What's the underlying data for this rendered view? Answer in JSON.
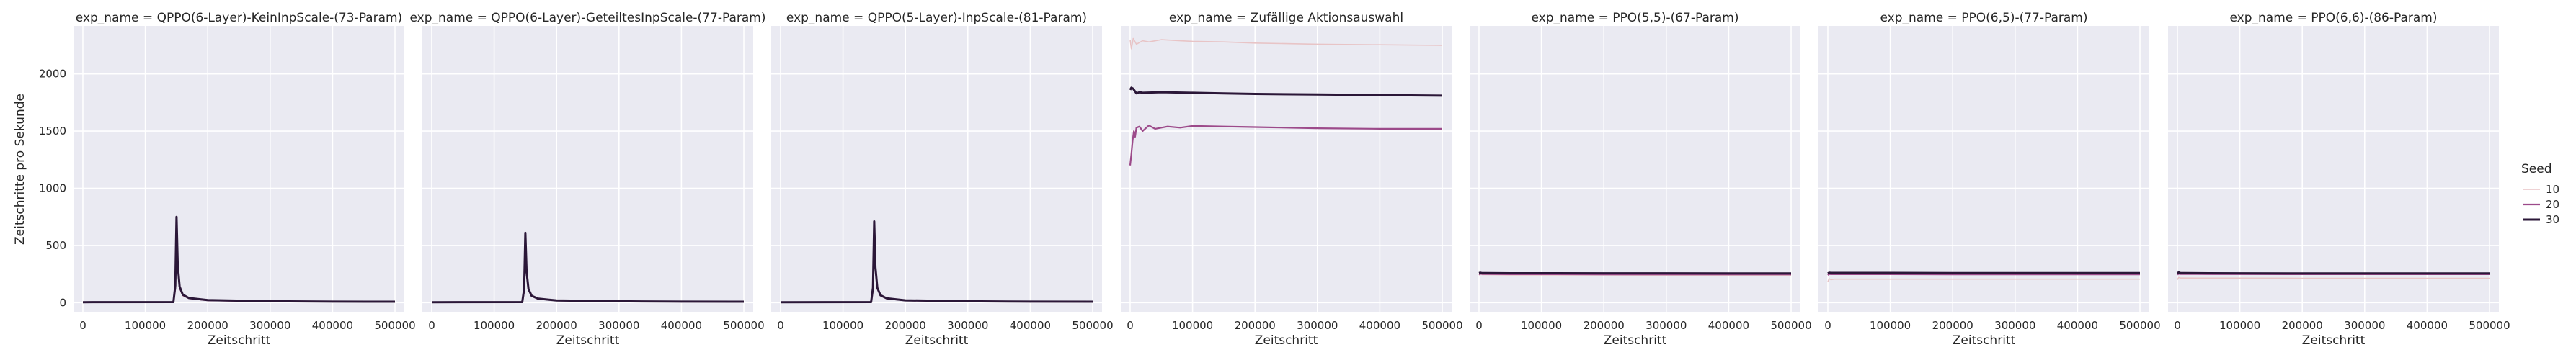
{
  "chart_data": {
    "type": "line",
    "xlabel": "Zeitschritt",
    "ylabel": "Zeitschritte pro Sekunde",
    "xlim": [
      -15000,
      515000
    ],
    "ylim": [
      -80,
      2420
    ],
    "xticks": [
      0,
      100000,
      200000,
      300000,
      400000,
      500000
    ],
    "yticks": [
      0,
      500,
      1000,
      1500,
      2000
    ],
    "grid": true,
    "legend": {
      "title": "Seed",
      "placement": "right",
      "entries": [
        {
          "label": "10",
          "color": "#e8c4c6"
        },
        {
          "label": "20",
          "color": "#9c4a8a"
        },
        {
          "label": "30",
          "color": "#2b1738"
        }
      ]
    },
    "panels": [
      {
        "title": "exp_name = QPPO(6-Layer)-KeinInpScale-(73-Param)",
        "series": [
          {
            "name": "10",
            "x": [
              0,
              145000,
              148000,
              150000,
              152000,
              155000,
              160000,
              170000,
              200000,
              300000,
              400000,
              500000
            ],
            "y": [
              2,
              3,
              100,
              680,
              300,
              120,
              60,
              35,
              18,
              10,
              8,
              7
            ]
          },
          {
            "name": "20",
            "x": [
              0,
              145000,
              148000,
              150000,
              152000,
              155000,
              160000,
              170000,
              200000,
              300000,
              400000,
              500000
            ],
            "y": [
              3,
              4,
              120,
              700,
              310,
              130,
              65,
              38,
              20,
              11,
              9,
              8
            ]
          },
          {
            "name": "30",
            "x": [
              0,
              145000,
              148000,
              150000,
              152000,
              155000,
              160000,
              170000,
              200000,
              300000,
              400000,
              500000
            ],
            "y": [
              4,
              5,
              150,
              750,
              330,
              140,
              70,
              40,
              22,
              12,
              9,
              8
            ]
          }
        ]
      },
      {
        "title": "exp_name = QPPO(6-Layer)-GeteiltesInpScale-(77-Param)",
        "series": [
          {
            "name": "10",
            "x": [
              0,
              145000,
              148000,
              150000,
              152000,
              155000,
              160000,
              170000,
              200000,
              300000,
              400000,
              500000
            ],
            "y": [
              2,
              3,
              90,
              560,
              250,
              110,
              55,
              32,
              17,
              10,
              8,
              7
            ]
          },
          {
            "name": "20",
            "x": [
              0,
              145000,
              148000,
              150000,
              152000,
              155000,
              160000,
              170000,
              200000,
              300000,
              400000,
              500000
            ],
            "y": [
              3,
              4,
              100,
              580,
              260,
              115,
              58,
              34,
              18,
              11,
              8,
              7
            ]
          },
          {
            "name": "30",
            "x": [
              0,
              145000,
              148000,
              150000,
              152000,
              155000,
              160000,
              170000,
              200000,
              300000,
              400000,
              500000
            ],
            "y": [
              4,
              5,
              120,
              610,
              270,
              120,
              60,
              36,
              19,
              12,
              9,
              8
            ]
          }
        ]
      },
      {
        "title": "exp_name = QPPO(5-Layer)-InpScale-(81-Param)",
        "series": [
          {
            "name": "10",
            "x": [
              0,
              145000,
              148000,
              150000,
              152000,
              155000,
              160000,
              170000,
              200000,
              300000,
              400000,
              500000
            ],
            "y": [
              2,
              3,
              100,
              660,
              290,
              120,
              60,
              34,
              18,
              10,
              8,
              7
            ]
          },
          {
            "name": "20",
            "x": [
              0,
              145000,
              148000,
              150000,
              152000,
              155000,
              160000,
              170000,
              200000,
              300000,
              400000,
              500000
            ],
            "y": [
              3,
              4,
              110,
              680,
              300,
              125,
              62,
              36,
              19,
              11,
              8,
              7
            ]
          },
          {
            "name": "30",
            "x": [
              0,
              145000,
              148000,
              150000,
              152000,
              155000,
              160000,
              170000,
              200000,
              300000,
              400000,
              500000
            ],
            "y": [
              4,
              5,
              130,
              710,
              310,
              130,
              65,
              38,
              20,
              12,
              9,
              8
            ]
          }
        ]
      },
      {
        "title": "exp_name = Zufällige Aktionsauswahl",
        "series": [
          {
            "name": "10",
            "x": [
              0,
              2000,
              5000,
              10000,
              20000,
              30000,
              50000,
              80000,
              100000,
              150000,
              200000,
              300000,
              400000,
              500000
            ],
            "y": [
              2300,
              2220,
              2310,
              2260,
              2290,
              2280,
              2300,
              2290,
              2285,
              2280,
              2270,
              2260,
              2255,
              2250
            ]
          },
          {
            "name": "20",
            "x": [
              0,
              2000,
              4000,
              6000,
              8000,
              10000,
              15000,
              20000,
              30000,
              40000,
              60000,
              80000,
              100000,
              150000,
              200000,
              300000,
              400000,
              500000
            ],
            "y": [
              1200,
              1300,
              1420,
              1500,
              1450,
              1530,
              1540,
              1500,
              1550,
              1520,
              1540,
              1530,
              1545,
              1540,
              1535,
              1525,
              1520,
              1520
            ]
          },
          {
            "name": "30",
            "x": [
              0,
              2000,
              5000,
              10000,
              15000,
              20000,
              50000,
              100000,
              150000,
              200000,
              300000,
              400000,
              500000
            ],
            "y": [
              1860,
              1880,
              1870,
              1830,
              1840,
              1835,
              1840,
              1835,
              1830,
              1825,
              1820,
              1815,
              1810
            ]
          }
        ]
      },
      {
        "title": "exp_name = PPO(5,5)-(67-Param)",
        "series": [
          {
            "name": "10",
            "x": [
              0,
              2000,
              5000,
              10000,
              50000,
              100000,
              200000,
              300000,
              400000,
              500000
            ],
            "y": [
              240,
              250,
              245,
              245,
              242,
              242,
              241,
              240,
              240,
              240
            ]
          },
          {
            "name": "20",
            "x": [
              0,
              2000,
              5000,
              10000,
              50000,
              100000,
              200000,
              300000,
              400000,
              500000
            ],
            "y": [
              245,
              255,
              250,
              250,
              248,
              248,
              247,
              246,
              246,
              246
            ]
          },
          {
            "name": "30",
            "x": [
              0,
              2000,
              5000,
              10000,
              50000,
              100000,
              200000,
              300000,
              400000,
              500000
            ],
            "y": [
              258,
              262,
              258,
              258,
              257,
              257,
              256,
              256,
              255,
              255
            ]
          }
        ]
      },
      {
        "title": "exp_name = PPO(6,5)-(77-Param)",
        "series": [
          {
            "name": "10",
            "x": [
              0,
              2000,
              5000,
              10000,
              50000,
              100000,
              200000,
              300000,
              400000,
              500000
            ],
            "y": [
              180,
              210,
              200,
              205,
              205,
              205,
              205,
              205,
              205,
              205
            ]
          },
          {
            "name": "20",
            "x": [
              0,
              2000,
              5000,
              10000,
              50000,
              100000,
              200000,
              300000,
              400000,
              500000
            ],
            "y": [
              240,
              250,
              248,
              248,
              248,
              248,
              247,
              247,
              247,
              247
            ]
          },
          {
            "name": "30",
            "x": [
              0,
              2000,
              5000,
              10000,
              50000,
              100000,
              200000,
              300000,
              400000,
              500000
            ],
            "y": [
              255,
              262,
              260,
              260,
              260,
              260,
              259,
              259,
              259,
              259
            ]
          }
        ]
      },
      {
        "title": "exp_name = PPO(6,6)-(86-Param)",
        "series": [
          {
            "name": "10",
            "x": [
              0,
              2000,
              5000,
              10000,
              50000,
              100000,
              200000,
              300000,
              400000,
              500000
            ],
            "y": [
              200,
              220,
              215,
              215,
              214,
              214,
              213,
              213,
              213,
              213
            ]
          },
          {
            "name": "20",
            "x": [
              0,
              2000,
              5000,
              10000,
              50000,
              100000,
              200000,
              300000,
              400000,
              500000
            ],
            "y": [
              245,
              252,
              250,
              250,
              249,
              249,
              248,
              248,
              248,
              248
            ]
          },
          {
            "name": "30",
            "x": [
              0,
              2000,
              5000,
              10000,
              50000,
              100000,
              200000,
              300000,
              400000,
              500000
            ],
            "y": [
              255,
              265,
              258,
              258,
              257,
              256,
              255,
              255,
              255,
              255
            ]
          }
        ]
      }
    ]
  }
}
